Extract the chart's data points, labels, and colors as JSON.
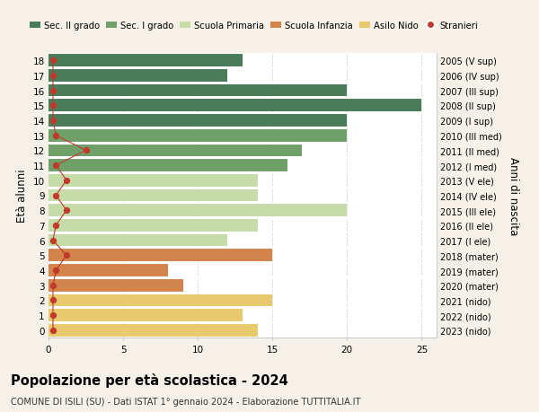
{
  "ages": [
    18,
    17,
    16,
    15,
    14,
    13,
    12,
    11,
    10,
    9,
    8,
    7,
    6,
    5,
    4,
    3,
    2,
    1,
    0
  ],
  "years": [
    "2005 (V sup)",
    "2006 (IV sup)",
    "2007 (III sup)",
    "2008 (II sup)",
    "2009 (I sup)",
    "2010 (III med)",
    "2011 (II med)",
    "2012 (I med)",
    "2013 (V ele)",
    "2014 (IV ele)",
    "2015 (III ele)",
    "2016 (II ele)",
    "2017 (I ele)",
    "2018 (mater)",
    "2019 (mater)",
    "2020 (mater)",
    "2021 (nido)",
    "2022 (nido)",
    "2023 (nido)"
  ],
  "values": [
    13,
    12,
    20,
    25,
    20,
    20,
    17,
    16,
    14,
    14,
    20,
    14,
    12,
    15,
    8,
    9,
    15,
    13,
    14
  ],
  "stranieri_x": [
    0.3,
    0.3,
    0.3,
    0.3,
    0.3,
    0.5,
    2.5,
    0.5,
    1.2,
    0.5,
    1.2,
    0.5,
    0.3,
    1.2,
    0.5,
    0.3,
    0.3,
    0.3,
    0.3
  ],
  "bar_colors": [
    "#4a7c59",
    "#4a7c59",
    "#4a7c59",
    "#4a7c59",
    "#4a7c59",
    "#6fa06a",
    "#6fa06a",
    "#6fa06a",
    "#c5dba8",
    "#c5dba8",
    "#c5dba8",
    "#c5dba8",
    "#c5dba8",
    "#d2844a",
    "#d2844a",
    "#d2844a",
    "#e8c96e",
    "#e8c96e",
    "#e8c96e"
  ],
  "legend_labels": [
    "Sec. II grado",
    "Sec. I grado",
    "Scuola Primaria",
    "Scuola Infanzia",
    "Asilo Nido",
    "Stranieri"
  ],
  "legend_colors": [
    "#4a7c59",
    "#6fa06a",
    "#c5dba8",
    "#d2844a",
    "#e8c96e",
    "#c0392b"
  ],
  "stranieri_color": "#c0392b",
  "title": "Popolazione per età scolastica - 2024",
  "subtitle": "COMUNE DI ISILI (SU) - Dati ISTAT 1° gennaio 2024 - Elaborazione TUTTITALIA.IT",
  "ylabel_left": "Età alunni",
  "ylabel_right": "Anni di nascita",
  "xlim": [
    0,
    26
  ],
  "ylim_min": -0.5,
  "ylim_max": 18.5,
  "background_color": "#f5f0e8",
  "plot_bg_color": "#ffffff",
  "grid_color": "#cccccc",
  "bar_height": 0.82
}
